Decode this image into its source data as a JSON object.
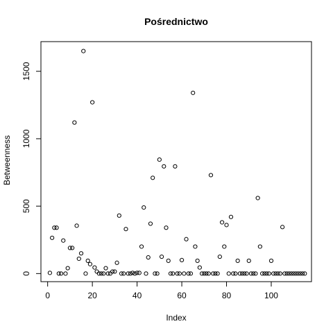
{
  "chart_data": {
    "type": "scatter",
    "title": "Pośrednictwo",
    "xlabel": "Index",
    "ylabel": "Betweenness",
    "xlim": [
      -3,
      118
    ],
    "ylim": [
      -60,
      1720
    ],
    "xticks": [
      0,
      20,
      40,
      60,
      80,
      100
    ],
    "yticks": [
      0,
      500,
      1000,
      1500
    ],
    "grid": false,
    "marker": "open-circle",
    "color": "#000000",
    "x": [
      1,
      2,
      3,
      4,
      5,
      6,
      7,
      8,
      9,
      10,
      11,
      12,
      13,
      14,
      15,
      16,
      17,
      18,
      19,
      20,
      21,
      22,
      23,
      24,
      25,
      26,
      27,
      28,
      29,
      30,
      31,
      32,
      33,
      34,
      35,
      36,
      37,
      38,
      39,
      40,
      41,
      42,
      43,
      44,
      45,
      46,
      47,
      48,
      49,
      50,
      51,
      52,
      53,
      54,
      55,
      56,
      57,
      58,
      59,
      60,
      61,
      62,
      63,
      64,
      65,
      66,
      67,
      68,
      69,
      70,
      71,
      72,
      73,
      74,
      75,
      76,
      77,
      78,
      79,
      80,
      81,
      82,
      83,
      84,
      85,
      86,
      87,
      88,
      89,
      90,
      91,
      92,
      93,
      94,
      95,
      96,
      97,
      98,
      99,
      100,
      101,
      102,
      103,
      104,
      105,
      106,
      107,
      108,
      109,
      110,
      111,
      112,
      113,
      114,
      115
    ],
    "y": [
      5,
      265,
      340,
      340,
      0,
      0,
      245,
      0,
      40,
      190,
      190,
      1120,
      355,
      110,
      150,
      1650,
      0,
      95,
      70,
      1270,
      45,
      15,
      0,
      0,
      0,
      40,
      0,
      0,
      15,
      15,
      80,
      430,
      0,
      0,
      330,
      0,
      0,
      5,
      0,
      5,
      5,
      200,
      490,
      0,
      120,
      370,
      710,
      0,
      0,
      845,
      125,
      795,
      340,
      95,
      0,
      0,
      795,
      0,
      0,
      100,
      0,
      255,
      0,
      0,
      1340,
      200,
      95,
      45,
      0,
      0,
      0,
      0,
      730,
      0,
      0,
      0,
      125,
      380,
      200,
      360,
      0,
      420,
      0,
      0,
      95,
      0,
      0,
      0,
      0,
      95,
      0,
      0,
      0,
      560,
      200,
      0,
      0,
      0,
      0,
      95,
      0,
      0,
      0,
      0,
      345,
      0,
      0,
      0,
      0,
      0,
      0,
      0,
      0,
      0,
      0
    ]
  }
}
